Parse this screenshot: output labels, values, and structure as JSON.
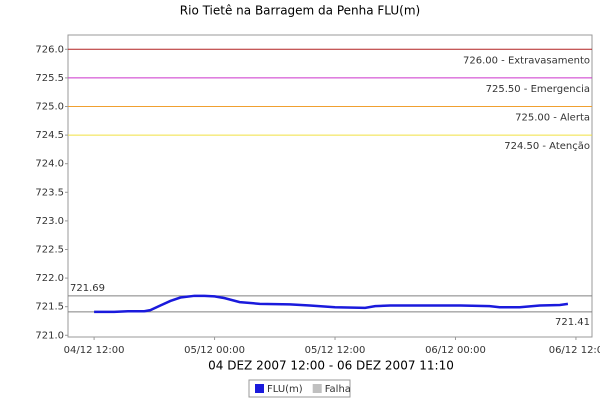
{
  "chart_data": {
    "type": "line",
    "title": "Rio Tietê na Barragem da Penha FLU(m)",
    "x_label": "04 DEZ 2007 12:00 - 06 DEZ 2007 11:10",
    "x": [
      0,
      2,
      3.4,
      5,
      5.6,
      6.6,
      7.6,
      8.6,
      10,
      11,
      12,
      13,
      14.5,
      16.5,
      19.5,
      21.5,
      24,
      27,
      28,
      29.5,
      33,
      36.5,
      39.4,
      40.4,
      42.4,
      44.4,
      46.4,
      47.2
    ],
    "series": [
      {
        "name": "FLU(m)",
        "color": "#1a1adc",
        "values": [
          721.41,
          721.41,
          721.42,
          721.42,
          721.44,
          721.52,
          721.6,
          721.66,
          721.69,
          721.69,
          721.68,
          721.65,
          721.58,
          721.55,
          721.54,
          721.52,
          721.49,
          721.48,
          721.51,
          721.52,
          721.52,
          721.52,
          721.51,
          721.49,
          721.49,
          721.52,
          721.53,
          721.55
        ]
      },
      {
        "name": "Falha",
        "color": "#c0c0c0",
        "values": [
          null,
          null,
          null,
          null,
          null,
          null,
          null,
          null,
          null,
          null,
          null,
          null,
          null,
          null,
          null,
          null,
          null,
          null,
          null,
          null,
          null,
          null,
          null,
          null,
          null,
          null,
          null,
          null
        ]
      }
    ],
    "xlim": [
      -2.6,
      49.6
    ],
    "xticks": [
      {
        "value": 0,
        "label": "04/12 12:00"
      },
      {
        "value": 12,
        "label": "05/12 00:00"
      },
      {
        "value": 24,
        "label": "05/12 12:00"
      },
      {
        "value": 36,
        "label": "06/12 00:00"
      },
      {
        "value": 48,
        "label": "06/12 12:0"
      }
    ],
    "ylim": [
      720.97,
      726.25
    ],
    "yticks": [
      {
        "value": 721,
        "label": "721.0"
      },
      721.5,
      {
        "value": 722,
        "label": "722.0"
      },
      722.5,
      {
        "value": 723,
        "label": "723.0"
      },
      723.5,
      {
        "value": 724,
        "label": "724.0"
      },
      724.5,
      {
        "value": 725,
        "label": "725.0"
      },
      725.5,
      {
        "value": 726,
        "label": "726.0"
      }
    ],
    "thresholds": [
      {
        "value": 726,
        "label": "726.00 - Extravasamento",
        "color": "#b22222"
      },
      {
        "value": 725.5,
        "label": "725.50 - Emergencia",
        "color": "#cc33cc"
      },
      {
        "value": 725,
        "label": "725.00 - Alerta",
        "color": "#f0a030"
      },
      {
        "value": 724.5,
        "label": "724.50 - Atenção",
        "color": "#f0e040"
      }
    ],
    "markers": [
      {
        "value": 721.69,
        "label": "721.69",
        "color": "#808080",
        "side": "left"
      },
      {
        "value": 721.41,
        "label": "721.41",
        "color": "#808080",
        "side": "right"
      }
    ]
  }
}
